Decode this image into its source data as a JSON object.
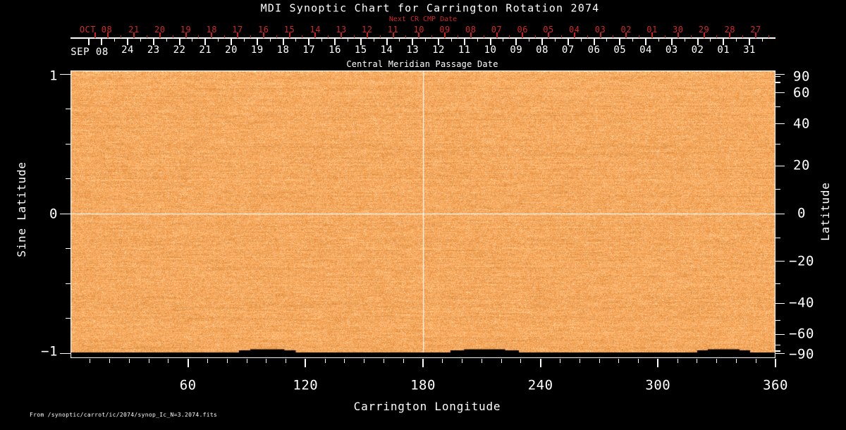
{
  "title": "MDI Synoptic Chart for Carrington Rotation 2074",
  "top_axis": {
    "next_cr_label": "Next CR CMP Date",
    "next_cr_month": "OCT 08",
    "next_cr_days": [
      "21",
      "20",
      "19",
      "18",
      "17",
      "16",
      "15",
      "14",
      "13",
      "12",
      "11",
      "10",
      "09",
      "08",
      "07",
      "06",
      "05",
      "04",
      "03",
      "02",
      "01",
      "30",
      "29",
      "28",
      "27"
    ],
    "cmp_title": "Central Meridian Passage Date",
    "cmp_month": "SEP 08",
    "cmp_days": [
      "24",
      "23",
      "22",
      "21",
      "20",
      "19",
      "18",
      "17",
      "16",
      "15",
      "14",
      "13",
      "12",
      "11",
      "10",
      "09",
      "08",
      "07",
      "06",
      "05",
      "04",
      "03",
      "02",
      "01",
      "31"
    ]
  },
  "x_axis": {
    "title": "Carrington Longitude",
    "major_ticks": [
      60,
      120,
      180,
      240,
      300,
      360
    ],
    "minor_step_deg": 10,
    "range_deg": [
      0,
      360
    ]
  },
  "y_left_axis": {
    "title": "Sine Latitude",
    "major_ticks": [
      1,
      0,
      -1
    ],
    "minor_step": 0.25,
    "range": [
      -1,
      1
    ]
  },
  "y_right_axis": {
    "title": "Latitude",
    "labeled_ticks_deg": [
      90,
      60,
      40,
      20,
      0,
      -20,
      -40,
      -60,
      -90
    ],
    "minor_step_deg": 10
  },
  "footer": {
    "source": "From  /synoptic/carrot/ic/2074/synop_Ic_N=3.2074.fits"
  },
  "colors": {
    "background": "#000000",
    "foreground": "#ffffff",
    "date_red": "#cc2a2a",
    "map_dark": "#ec9240",
    "map_base": "#f4a458",
    "map_light": "#fdc082",
    "speckle_light": "#ffdcb9",
    "speckle_dark": "#e48430"
  },
  "chart_data": {
    "type": "heatmap",
    "title": "MDI Synoptic Chart for Carrington Rotation 2074",
    "xlabel": "Carrington Longitude",
    "ylabel": "Sine Latitude",
    "ylabel_right": "Latitude",
    "x_range_deg": [
      0,
      360
    ],
    "x_major_ticks": [
      60,
      120,
      180,
      240,
      300,
      360
    ],
    "x_minor_step_deg": 10,
    "y_sine_range": [
      -1,
      1
    ],
    "y_left_major_ticks": [
      1,
      0,
      -1
    ],
    "y_left_minor_step": 0.25,
    "y_right_labeled_ticks_deg": [
      90,
      60,
      40,
      20,
      0,
      -20,
      -40,
      -60,
      -90
    ],
    "y_right_minor_step_deg": 10,
    "field_description": "Near-uniform solar continuum intensity synoptic map rendered as orange speckle noise; lighter streaked band along the top few pixel rows",
    "reference_lines": {
      "longitude_deg": 180,
      "sine_latitude": 0
    },
    "missing_data": {
      "south_polar_band_sine_lat": [
        -1.035,
        -0.985
      ],
      "gap_bump_segments_longitude_deg": [
        [
          86,
          115
        ],
        [
          194,
          229
        ],
        [
          320,
          347
        ]
      ]
    },
    "cmp_date_axis": {
      "month": "SEP 08",
      "days": [
        "24",
        "23",
        "22",
        "21",
        "20",
        "19",
        "18",
        "17",
        "16",
        "15",
        "14",
        "13",
        "12",
        "11",
        "10",
        "09",
        "08",
        "07",
        "06",
        "05",
        "04",
        "03",
        "02",
        "01",
        "31"
      ]
    },
    "next_cr_cmp_date_axis": {
      "month": "OCT 08",
      "days": [
        "21",
        "20",
        "19",
        "18",
        "17",
        "16",
        "15",
        "14",
        "13",
        "12",
        "11",
        "10",
        "09",
        "08",
        "07",
        "06",
        "05",
        "04",
        "03",
        "02",
        "01",
        "30",
        "29",
        "28",
        "27"
      ]
    }
  }
}
